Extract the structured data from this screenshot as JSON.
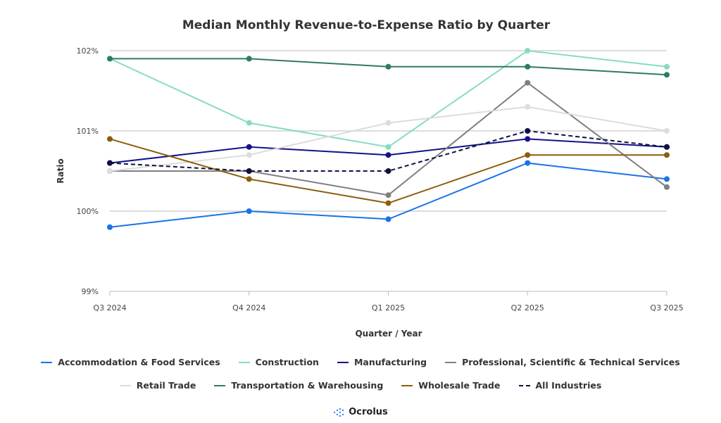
{
  "chart_data": {
    "type": "line",
    "title": "Median Monthly Revenue-to-Expense Ratio by Quarter",
    "xlabel": "Quarter / Year",
    "ylabel": "Ratio",
    "categories": [
      "Q3 2024",
      "Q4 2024",
      "Q1 2025",
      "Q2 2025",
      "Q3 2025"
    ],
    "ylim": [
      99,
      102
    ],
    "yticks": [
      99,
      100,
      101,
      102
    ],
    "ytick_labels": [
      "99%",
      "100%",
      "101%",
      "102%"
    ],
    "grid": true,
    "legend_position": "bottom",
    "series": [
      {
        "name": "Accommodation & Food Services",
        "color": "#1a73e8",
        "values": [
          99.8,
          100.0,
          99.9,
          100.6,
          100.4
        ]
      },
      {
        "name": "Construction",
        "color": "#86dcc0",
        "values": [
          101.9,
          101.1,
          100.8,
          102.0,
          101.8
        ]
      },
      {
        "name": "Manufacturing",
        "color": "#12128a",
        "values": [
          100.6,
          100.8,
          100.7,
          100.9,
          100.8
        ]
      },
      {
        "name": "Professional, Scientific & Technical Services",
        "color": "#7f7f7f",
        "values": [
          100.5,
          100.5,
          100.2,
          101.6,
          100.3
        ]
      },
      {
        "name": "Retail Trade",
        "color": "#dcdcdc",
        "values": [
          100.5,
          100.7,
          101.1,
          101.3,
          101.0
        ]
      },
      {
        "name": "Transportation & Warehousing",
        "color": "#2e7a68",
        "values": [
          101.9,
          101.9,
          101.8,
          101.8,
          101.7
        ]
      },
      {
        "name": "Wholesale Trade",
        "color": "#8c5e0a",
        "values": [
          100.9,
          100.4,
          100.1,
          100.7,
          100.7
        ]
      },
      {
        "name": "All Industries",
        "color": "#0d1240",
        "dashed": true,
        "values": [
          100.6,
          100.5,
          100.5,
          101.0,
          100.8
        ]
      }
    ]
  },
  "logo": {
    "text": "Ocrolus",
    "color": "#3b82f6"
  }
}
